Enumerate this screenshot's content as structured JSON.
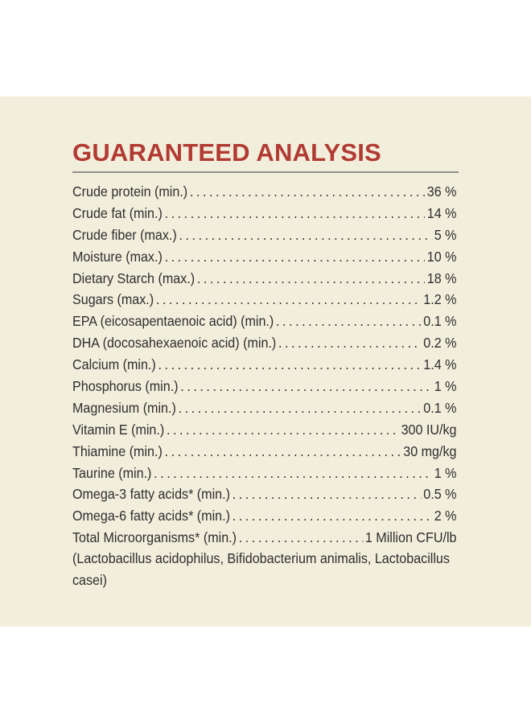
{
  "title": "GUARANTEED ANALYSIS",
  "rows": [
    {
      "label": "Crude protein (min.)",
      "value": "36 %"
    },
    {
      "label": "Crude fat (min.)",
      "value": "14 %"
    },
    {
      "label": "Crude fiber (max.)",
      "value": "5 %"
    },
    {
      "label": "Moisture (max.)",
      "value": "10 %"
    },
    {
      "label": "Dietary Starch (max.)",
      "value": "18 %"
    },
    {
      "label": "Sugars (max.)",
      "value": "1.2 %"
    },
    {
      "label": "EPA (eicosapentaenoic acid) (min.)",
      "value": "0.1 %"
    },
    {
      "label": "DHA (docosahexaenoic acid) (min.)",
      "value": "0.2 %"
    },
    {
      "label": "Calcium (min.)",
      "value": "1.4 %"
    },
    {
      "label": "Phosphorus (min.)",
      "value": "1 %"
    },
    {
      "label": "Magnesium (min.)",
      "value": "0.1 %"
    },
    {
      "label": "Vitamin E (min.)",
      "value": "300 IU/kg"
    },
    {
      "label": "Thiamine (min.)",
      "value": "30 mg/kg"
    },
    {
      "label": "Taurine (min.)",
      "value": "1 %"
    },
    {
      "label": "Omega-3 fatty acids* (min.)",
      "value": "0.5 %"
    },
    {
      "label": "Omega-6 fatty acids* (min.)",
      "value": "2 %"
    },
    {
      "label": "Total Microorganisms* (min.)",
      "value": "1 Million CFU/lb"
    }
  ],
  "note": "(Lactobacillus acidophilus, Bifidobacterium animalis, Lactobacillus casei)",
  "colors": {
    "panel_background": "#f2eedc",
    "title": "#b13a32",
    "text": "#2e2e2e",
    "rule": "#8e8e8e"
  }
}
